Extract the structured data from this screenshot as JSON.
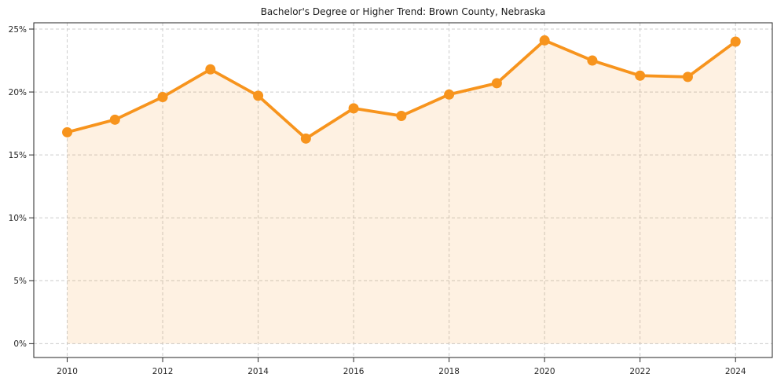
{
  "chart_data": {
    "type": "line",
    "title": "Bachelor's Degree or Higher Trend: Brown County, Nebraska",
    "x": [
      2010,
      2011,
      2012,
      2013,
      2014,
      2015,
      2016,
      2017,
      2018,
      2019,
      2020,
      2021,
      2022,
      2023,
      2024
    ],
    "values": [
      16.8,
      17.8,
      19.6,
      21.8,
      19.7,
      16.3,
      18.7,
      18.1,
      19.8,
      20.7,
      24.1,
      22.5,
      21.3,
      21.2,
      24.0
    ],
    "xlabel": "",
    "ylabel": "",
    "xlim": [
      2009.3,
      2024.77
    ],
    "ylim": [
      -1.1,
      25.5
    ],
    "xticks": [
      2010,
      2012,
      2014,
      2016,
      2018,
      2020,
      2022,
      2024
    ],
    "xtick_labels": [
      "2010",
      "2012",
      "2014",
      "2016",
      "2018",
      "2020",
      "2022",
      "2024"
    ],
    "yticks": [
      0,
      5,
      10,
      15,
      20,
      25
    ],
    "ytick_labels": [
      "0%",
      "5%",
      "10%",
      "15%",
      "20%",
      "25%"
    ],
    "grid": true,
    "legend_position": "none",
    "marker": "circle",
    "area_fill": true,
    "baseline_value": 0,
    "colors": {
      "line": "#F7941D",
      "marker": "#F7941D",
      "area": "rgba(247,148,29,0.13)",
      "grid": "#CCCCCC",
      "spine": "#262626",
      "tick_label": "#262626",
      "title": "#1A1A1A",
      "background": "#FFFFFF"
    }
  }
}
